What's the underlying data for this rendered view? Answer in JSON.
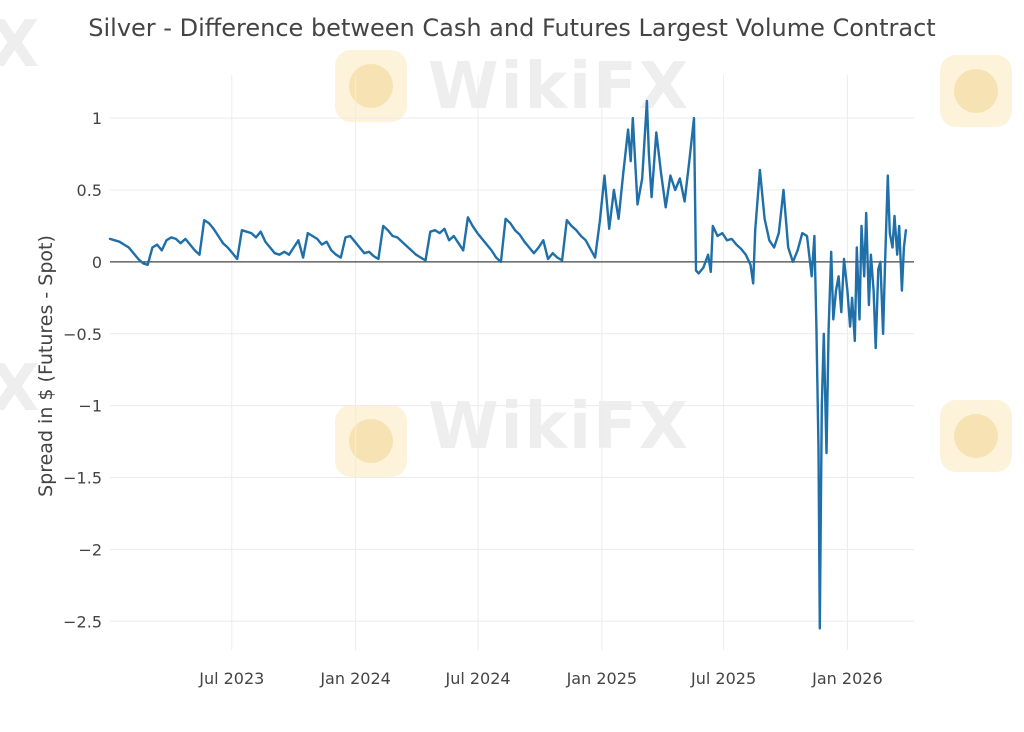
{
  "chart_data": {
    "type": "line",
    "title": "Silver - Difference between Cash and Futures Largest Volume Contract",
    "xlabel": "",
    "ylabel": "Spread in $ (Futures - Spot)",
    "xlim": [
      "2023-01-01",
      "2026-04-10"
    ],
    "ylim": [
      -2.7,
      1.3
    ],
    "grid": true,
    "legend": "none",
    "x_ticks": [
      {
        "date": "2023-07-01",
        "label": "Jul 2023"
      },
      {
        "date": "2024-01-01",
        "label": "Jan 2024"
      },
      {
        "date": "2024-07-01",
        "label": "Jul 2024"
      },
      {
        "date": "2025-01-01",
        "label": "Jan 2025"
      },
      {
        "date": "2025-07-01",
        "label": "Jul 2025"
      },
      {
        "date": "2026-01-01",
        "label": "Jan 2026"
      }
    ],
    "y_ticks": [
      {
        "value": 1,
        "label": "1"
      },
      {
        "value": 0.5,
        "label": "0.5"
      },
      {
        "value": 0,
        "label": "0"
      },
      {
        "value": -0.5,
        "label": "−0.5"
      },
      {
        "value": -1,
        "label": "−1"
      },
      {
        "value": -1.5,
        "label": "−1.5"
      },
      {
        "value": -2,
        "label": "−2"
      },
      {
        "value": -2.5,
        "label": "−2.5"
      }
    ],
    "series": [
      {
        "color": "#1f6fa8",
        "points": [
          [
            "2023-01-01",
            0.16
          ],
          [
            "2023-01-08",
            0.15
          ],
          [
            "2023-01-15",
            0.14
          ],
          [
            "2023-01-22",
            0.12
          ],
          [
            "2023-01-29",
            0.1
          ],
          [
            "2023-02-05",
            0.06
          ],
          [
            "2023-02-12",
            0.02
          ],
          [
            "2023-02-19",
            -0.01
          ],
          [
            "2023-02-26",
            -0.02
          ],
          [
            "2023-03-05",
            0.1
          ],
          [
            "2023-03-12",
            0.12
          ],
          [
            "2023-03-19",
            0.08
          ],
          [
            "2023-03-26",
            0.15
          ],
          [
            "2023-04-02",
            0.17
          ],
          [
            "2023-04-09",
            0.16
          ],
          [
            "2023-04-16",
            0.13
          ],
          [
            "2023-04-23",
            0.16
          ],
          [
            "2023-04-30",
            0.12
          ],
          [
            "2023-05-07",
            0.08
          ],
          [
            "2023-05-14",
            0.05
          ],
          [
            "2023-05-21",
            0.29
          ],
          [
            "2023-05-28",
            0.27
          ],
          [
            "2023-06-04",
            0.23
          ],
          [
            "2023-06-11",
            0.18
          ],
          [
            "2023-06-18",
            0.13
          ],
          [
            "2023-06-25",
            0.1
          ],
          [
            "2023-07-02",
            0.06
          ],
          [
            "2023-07-09",
            0.02
          ],
          [
            "2023-07-16",
            0.22
          ],
          [
            "2023-07-23",
            0.21
          ],
          [
            "2023-07-30",
            0.2
          ],
          [
            "2023-08-06",
            0.17
          ],
          [
            "2023-08-13",
            0.21
          ],
          [
            "2023-08-20",
            0.14
          ],
          [
            "2023-08-27",
            0.1
          ],
          [
            "2023-09-03",
            0.06
          ],
          [
            "2023-09-10",
            0.05
          ],
          [
            "2023-09-17",
            0.07
          ],
          [
            "2023-09-24",
            0.05
          ],
          [
            "2023-10-01",
            0.1
          ],
          [
            "2023-10-08",
            0.15
          ],
          [
            "2023-10-15",
            0.03
          ],
          [
            "2023-10-22",
            0.2
          ],
          [
            "2023-10-29",
            0.18
          ],
          [
            "2023-11-05",
            0.16
          ],
          [
            "2023-11-12",
            0.12
          ],
          [
            "2023-11-19",
            0.14
          ],
          [
            "2023-11-26",
            0.08
          ],
          [
            "2023-12-03",
            0.05
          ],
          [
            "2023-12-10",
            0.03
          ],
          [
            "2023-12-17",
            0.17
          ],
          [
            "2023-12-24",
            0.18
          ],
          [
            "2023-12-31",
            0.14
          ],
          [
            "2024-01-07",
            0.1
          ],
          [
            "2024-01-14",
            0.06
          ],
          [
            "2024-01-21",
            0.07
          ],
          [
            "2024-01-28",
            0.04
          ],
          [
            "2024-02-04",
            0.02
          ],
          [
            "2024-02-11",
            0.25
          ],
          [
            "2024-02-18",
            0.22
          ],
          [
            "2024-02-25",
            0.18
          ],
          [
            "2024-03-03",
            0.17
          ],
          [
            "2024-03-10",
            0.14
          ],
          [
            "2024-03-17",
            0.11
          ],
          [
            "2024-03-24",
            0.08
          ],
          [
            "2024-03-31",
            0.05
          ],
          [
            "2024-04-07",
            0.03
          ],
          [
            "2024-04-14",
            0.01
          ],
          [
            "2024-04-21",
            0.21
          ],
          [
            "2024-04-28",
            0.22
          ],
          [
            "2024-05-05",
            0.2
          ],
          [
            "2024-05-12",
            0.23
          ],
          [
            "2024-05-19",
            0.15
          ],
          [
            "2024-05-26",
            0.18
          ],
          [
            "2024-06-02",
            0.13
          ],
          [
            "2024-06-09",
            0.08
          ],
          [
            "2024-06-16",
            0.31
          ],
          [
            "2024-06-23",
            0.25
          ],
          [
            "2024-06-30",
            0.2
          ],
          [
            "2024-07-07",
            0.16
          ],
          [
            "2024-07-14",
            0.12
          ],
          [
            "2024-07-21",
            0.08
          ],
          [
            "2024-07-28",
            0.03
          ],
          [
            "2024-08-04",
            0.0
          ],
          [
            "2024-08-11",
            0.3
          ],
          [
            "2024-08-18",
            0.27
          ],
          [
            "2024-08-25",
            0.22
          ],
          [
            "2024-09-01",
            0.19
          ],
          [
            "2024-09-08",
            0.14
          ],
          [
            "2024-09-15",
            0.1
          ],
          [
            "2024-09-22",
            0.06
          ],
          [
            "2024-09-29",
            0.1
          ],
          [
            "2024-10-06",
            0.15
          ],
          [
            "2024-10-13",
            0.02
          ],
          [
            "2024-10-20",
            0.06
          ],
          [
            "2024-10-27",
            0.03
          ],
          [
            "2024-11-03",
            0.01
          ],
          [
            "2024-11-10",
            0.29
          ],
          [
            "2024-11-17",
            0.25
          ],
          [
            "2024-11-24",
            0.22
          ],
          [
            "2024-12-01",
            0.18
          ],
          [
            "2024-12-08",
            0.15
          ],
          [
            "2024-12-15",
            0.09
          ],
          [
            "2024-12-22",
            0.03
          ],
          [
            "2024-12-29",
            0.28
          ],
          [
            "2025-01-05",
            0.6
          ],
          [
            "2025-01-12",
            0.23
          ],
          [
            "2025-01-19",
            0.5
          ],
          [
            "2025-01-26",
            0.3
          ],
          [
            "2025-02-02",
            0.62
          ],
          [
            "2025-02-09",
            0.92
          ],
          [
            "2025-02-13",
            0.7
          ],
          [
            "2025-02-16",
            1.0
          ],
          [
            "2025-02-23",
            0.4
          ],
          [
            "2025-03-02",
            0.58
          ],
          [
            "2025-03-09",
            1.12
          ],
          [
            "2025-03-12",
            0.75
          ],
          [
            "2025-03-16",
            0.45
          ],
          [
            "2025-03-23",
            0.9
          ],
          [
            "2025-03-30",
            0.62
          ],
          [
            "2025-04-06",
            0.38
          ],
          [
            "2025-04-13",
            0.6
          ],
          [
            "2025-04-20",
            0.5
          ],
          [
            "2025-04-27",
            0.58
          ],
          [
            "2025-05-04",
            0.42
          ],
          [
            "2025-05-11",
            0.7
          ],
          [
            "2025-05-18",
            1.0
          ],
          [
            "2025-05-21",
            -0.06
          ],
          [
            "2025-05-25",
            -0.08
          ],
          [
            "2025-06-01",
            -0.04
          ],
          [
            "2025-06-08",
            0.05
          ],
          [
            "2025-06-12",
            -0.07
          ],
          [
            "2025-06-15",
            0.25
          ],
          [
            "2025-06-22",
            0.18
          ],
          [
            "2025-06-29",
            0.2
          ],
          [
            "2025-07-06",
            0.15
          ],
          [
            "2025-07-13",
            0.16
          ],
          [
            "2025-07-20",
            0.12
          ],
          [
            "2025-07-27",
            0.09
          ],
          [
            "2025-08-03",
            0.05
          ],
          [
            "2025-08-10",
            -0.02
          ],
          [
            "2025-08-14",
            -0.15
          ],
          [
            "2025-08-17",
            0.22
          ],
          [
            "2025-08-24",
            0.64
          ],
          [
            "2025-08-31",
            0.3
          ],
          [
            "2025-09-07",
            0.15
          ],
          [
            "2025-09-14",
            0.1
          ],
          [
            "2025-09-21",
            0.2
          ],
          [
            "2025-09-28",
            0.5
          ],
          [
            "2025-10-05",
            0.1
          ],
          [
            "2025-10-12",
            0.0
          ],
          [
            "2025-10-19",
            0.08
          ],
          [
            "2025-10-26",
            0.2
          ],
          [
            "2025-11-02",
            0.18
          ],
          [
            "2025-11-09",
            -0.1
          ],
          [
            "2025-11-13",
            0.18
          ],
          [
            "2025-11-16",
            -0.45
          ],
          [
            "2025-11-19",
            -1.3
          ],
          [
            "2025-11-21",
            -2.55
          ],
          [
            "2025-11-24",
            -1.0
          ],
          [
            "2025-11-27",
            -0.5
          ],
          [
            "2025-12-01",
            -1.33
          ],
          [
            "2025-12-04",
            -0.47
          ],
          [
            "2025-12-08",
            0.07
          ],
          [
            "2025-12-11",
            -0.4
          ],
          [
            "2025-12-15",
            -0.2
          ],
          [
            "2025-12-19",
            -0.1
          ],
          [
            "2025-12-23",
            -0.35
          ],
          [
            "2025-12-27",
            0.02
          ],
          [
            "2026-01-01",
            -0.2
          ],
          [
            "2026-01-05",
            -0.45
          ],
          [
            "2026-01-08",
            -0.25
          ],
          [
            "2026-01-12",
            -0.55
          ],
          [
            "2026-01-15",
            0.1
          ],
          [
            "2026-01-19",
            -0.4
          ],
          [
            "2026-01-22",
            0.25
          ],
          [
            "2026-01-26",
            -0.1
          ],
          [
            "2026-01-29",
            0.34
          ],
          [
            "2026-02-02",
            -0.3
          ],
          [
            "2026-02-05",
            0.05
          ],
          [
            "2026-02-09",
            -0.2
          ],
          [
            "2026-02-12",
            -0.6
          ],
          [
            "2026-02-16",
            -0.05
          ],
          [
            "2026-02-19",
            0.0
          ],
          [
            "2026-02-23",
            -0.5
          ],
          [
            "2026-02-26",
            0.0
          ],
          [
            "2026-03-02",
            0.6
          ],
          [
            "2026-03-05",
            0.2
          ],
          [
            "2026-03-09",
            0.1
          ],
          [
            "2026-03-12",
            0.32
          ],
          [
            "2026-03-16",
            0.05
          ],
          [
            "2026-03-19",
            0.25
          ],
          [
            "2026-03-23",
            -0.2
          ],
          [
            "2026-03-26",
            0.1
          ],
          [
            "2026-03-29",
            0.22
          ]
        ]
      }
    ]
  }
}
